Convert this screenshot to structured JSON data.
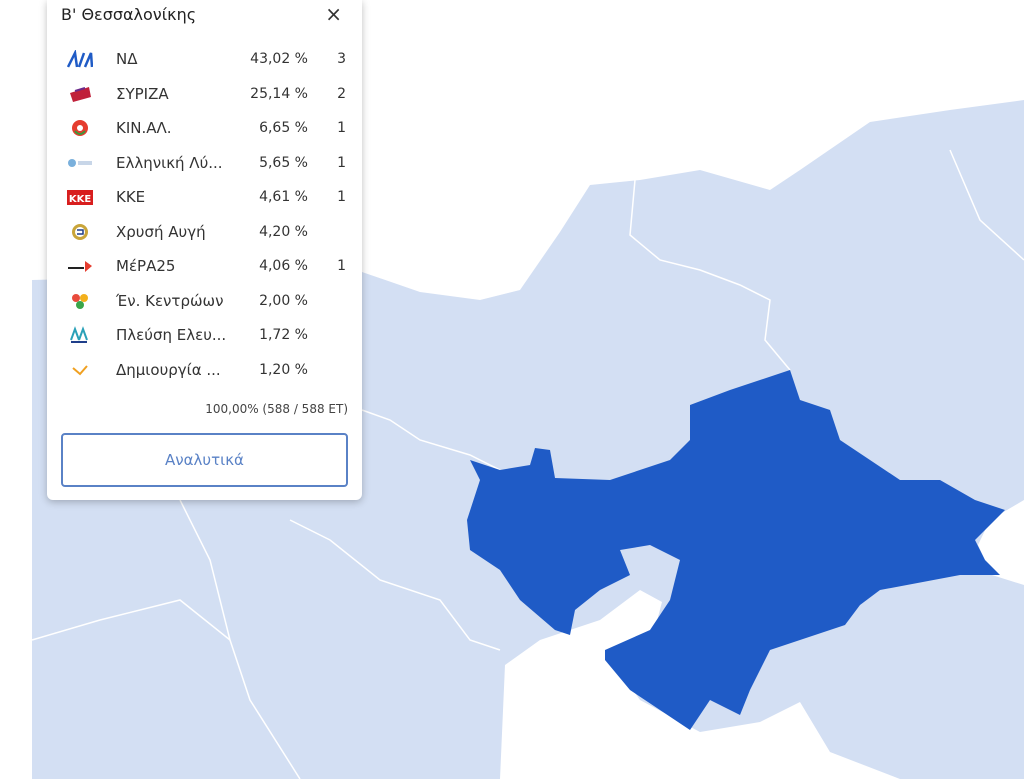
{
  "header": {
    "title": "Β' Θεσσαλονίκης",
    "close": "×"
  },
  "results": [
    {
      "party": "ΝΔ",
      "percent": "43,02 %",
      "seats": 3
    },
    {
      "party": "ΣΥΡΙΖΑ",
      "percent": "25,14 %",
      "seats": 2
    },
    {
      "party": "ΚΙΝ.ΑΛ.",
      "percent": "6,65 %",
      "seats": 1
    },
    {
      "party": "Ελληνική Λύ...",
      "percent": "5,65 %",
      "seats": 1
    },
    {
      "party": "ΚΚΕ",
      "percent": "4,61 %",
      "seats": 1
    },
    {
      "party": "Χρυσή Αυγή",
      "percent": "4,20 %"
    },
    {
      "party": "ΜέΡΑ25",
      "percent": "4,06 %",
      "seats": 1
    },
    {
      "party": "Έν. Κεντρώων",
      "percent": "2,00 %"
    },
    {
      "party": "Πλεύση Ελευ...",
      "percent": "1,72 %"
    },
    {
      "party": "Δημιουργία ...",
      "percent": "1,20 %"
    }
  ],
  "summary": "100,00% (588 / 588 ΕΤ)",
  "button": "Αναλυτικά"
}
